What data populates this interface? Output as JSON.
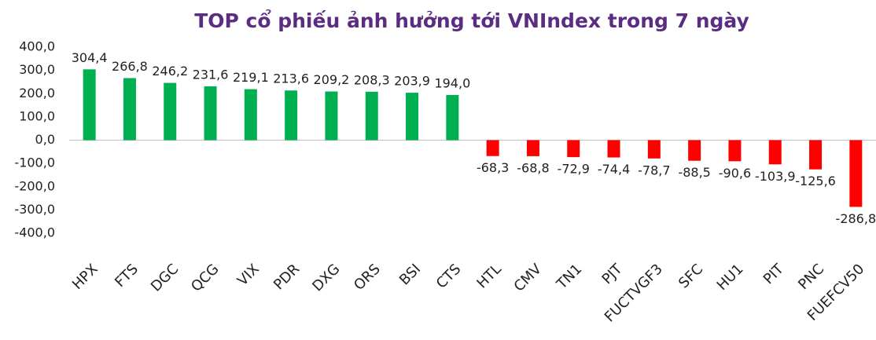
{
  "chart_data": {
    "type": "bar",
    "title": "TOP cổ phiếu ảnh hưởng tới VNIndex trong 7 ngày",
    "categories": [
      "HPX",
      "FTS",
      "DGC",
      "QCG",
      "VIX",
      "PDR",
      "DXG",
      "ORS",
      "BSI",
      "CTS",
      "HTL",
      "CMV",
      "TN1",
      "PJT",
      "FUCTVGF3",
      "SFC",
      "HU1",
      "PIT",
      "PNC",
      "FUEFCV50"
    ],
    "values": [
      304.4,
      266.8,
      246.2,
      231.6,
      219.1,
      213.6,
      209.2,
      208.3,
      203.9,
      194.0,
      -68.3,
      -68.8,
      -72.9,
      -74.4,
      -78.7,
      -88.5,
      -90.6,
      -103.9,
      -125.6,
      -286.8
    ],
    "value_labels": [
      "304,4",
      "266,8",
      "246,2",
      "231,6",
      "219,1",
      "213,6",
      "209,2",
      "208,3",
      "203,9",
      "194,0",
      "-68,3",
      "-68,8",
      "-72,9",
      "-74,4",
      "-78,7",
      "-88,5",
      "-90,6",
      "-103,9",
      "-125,6",
      "-286,8"
    ],
    "color_positive": "#00b050",
    "color_negative": "#ff0000",
    "ylim": [
      -400,
      400
    ],
    "yticks": [
      {
        "value": 400,
        "label": "400,0"
      },
      {
        "value": 300,
        "label": "300,0"
      },
      {
        "value": 200,
        "label": "200,0"
      },
      {
        "value": 100,
        "label": "100,0"
      },
      {
        "value": 0,
        "label": "0,0"
      },
      {
        "value": -100,
        "label": "-100,0"
      },
      {
        "value": -200,
        "label": "-200,0"
      },
      {
        "value": -300,
        "label": "-300,0"
      },
      {
        "value": -400,
        "label": "-400,0"
      }
    ],
    "grid": false
  }
}
